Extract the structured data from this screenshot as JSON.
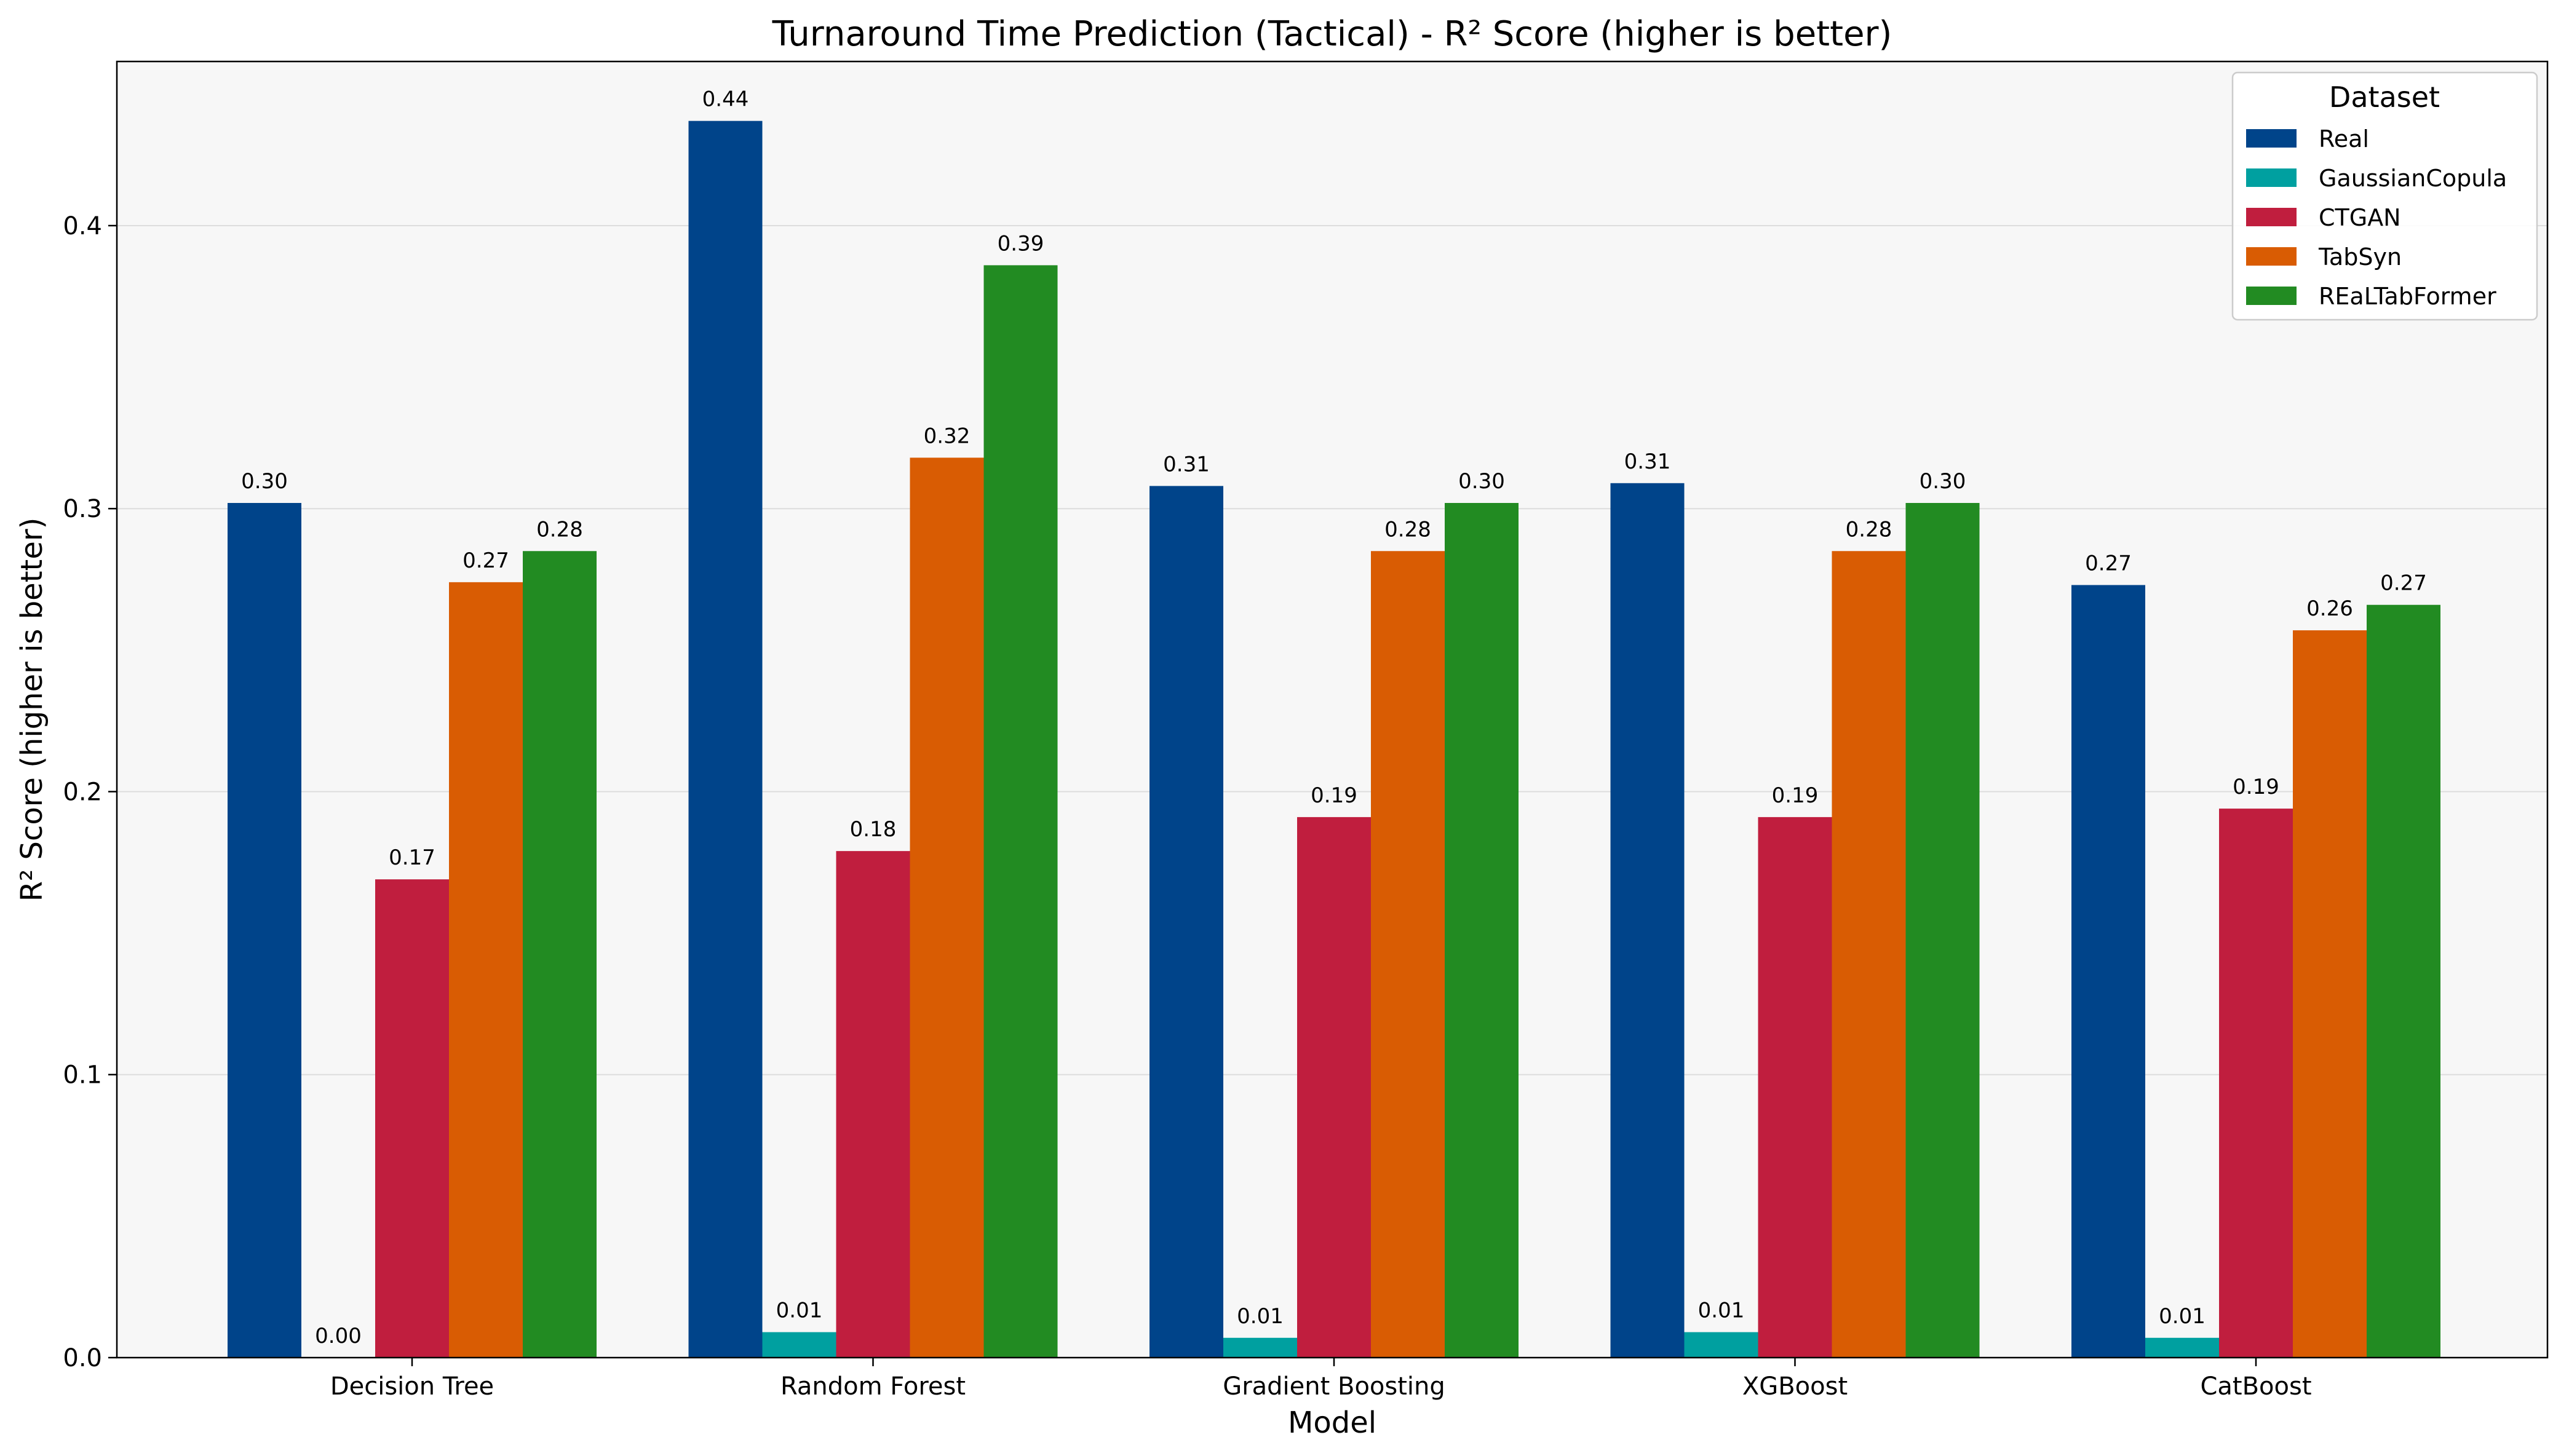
{
  "chart_data": {
    "type": "bar",
    "title": "Turnaround Time Prediction (Tactical) - R² Score (higher is better)",
    "xlabel": "Model",
    "ylabel": "R² Score (higher is better)",
    "categories": [
      "Decision Tree",
      "Random Forest",
      "Gradient Boosting",
      "XGBoost",
      "CatBoost"
    ],
    "series": [
      {
        "name": "Real",
        "color": "#00448a",
        "values": [
          0.302,
          0.437,
          0.308,
          0.309,
          0.273
        ],
        "labels": [
          "0.30",
          "0.44",
          "0.31",
          "0.31",
          "0.27"
        ]
      },
      {
        "name": "GaussianCopula",
        "color": "#00a0a0",
        "values": [
          0.0,
          0.009,
          0.007,
          0.009,
          0.007
        ],
        "labels": [
          "0.00",
          "0.01",
          "0.01",
          "0.01",
          "0.01"
        ]
      },
      {
        "name": "CTGAN",
        "color": "#c01e3e",
        "values": [
          0.169,
          0.179,
          0.191,
          0.191,
          0.194
        ],
        "labels": [
          "0.17",
          "0.18",
          "0.19",
          "0.19",
          "0.19"
        ]
      },
      {
        "name": "TabSyn",
        "color": "#d95c03",
        "values": [
          0.274,
          0.318,
          0.285,
          0.285,
          0.257
        ],
        "labels": [
          "0.27",
          "0.32",
          "0.28",
          "0.28",
          "0.26"
        ]
      },
      {
        "name": "REaLTabFormer",
        "color": "#228b22",
        "values": [
          0.285,
          0.386,
          0.302,
          0.302,
          0.266
        ],
        "labels": [
          "0.28",
          "0.39",
          "0.30",
          "0.30",
          "0.27"
        ]
      }
    ],
    "yticks": [
      0.0,
      0.1,
      0.2,
      0.3,
      0.4
    ],
    "ytick_labels": [
      "0.0",
      "0.1",
      "0.2",
      "0.3",
      "0.4"
    ],
    "ylim": [
      0.0,
      0.458
    ],
    "grid": "horizontal",
    "legend": {
      "title": "Dataset",
      "placement": "top-right"
    },
    "plot_background": "#f7f7f7"
  }
}
